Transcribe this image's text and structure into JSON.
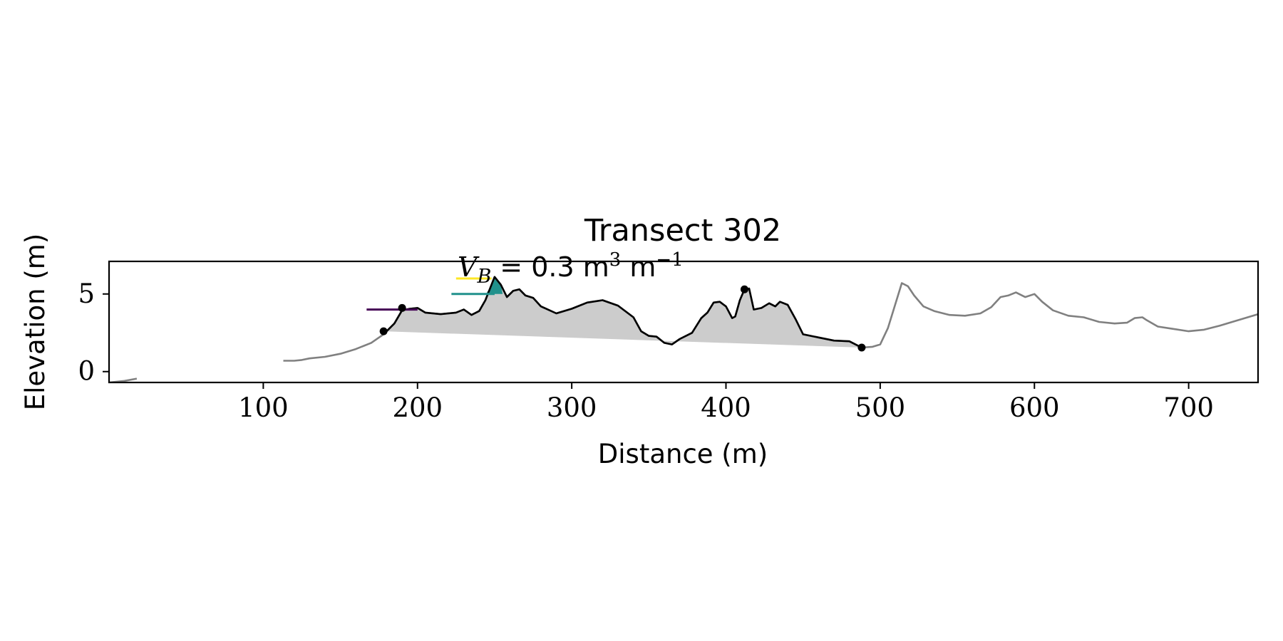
{
  "chart_data": {
    "type": "line",
    "title": "Transect 302",
    "xlabel": "Distance (m)",
    "ylabel": "Elevation (m)",
    "xlim": [
      0,
      745
    ],
    "ylim": [
      -0.7,
      7.1
    ],
    "xticks": [
      100,
      200,
      300,
      400,
      500,
      600,
      700
    ],
    "yticks": [
      0,
      5
    ],
    "grid": false,
    "legend": "none",
    "annotation": {
      "text": "V_B = 0.3 m^3 m^-1",
      "parts": {
        "v": "V",
        "sub": "B",
        "eq": "= 0.3 m",
        "exp1": "3",
        "mid": " m",
        "exp2": "−1"
      }
    },
    "series": [
      {
        "role": "full-profile",
        "color": "#808080",
        "segments": [
          [
            [
              0,
              -0.7
            ],
            [
              10,
              -0.6
            ],
            [
              18,
              -0.45
            ]
          ],
          [
            [
              113,
              0.7
            ],
            [
              120,
              0.7
            ],
            [
              125,
              0.75
            ],
            [
              130,
              0.85
            ],
            [
              140,
              0.95
            ],
            [
              150,
              1.15
            ],
            [
              160,
              1.45
            ],
            [
              170,
              1.85
            ],
            [
              178,
              2.4
            ],
            [
              185,
              3.1
            ],
            [
              190,
              3.95
            ],
            [
              195,
              4.05
            ],
            [
              200,
              4.1
            ],
            [
              205,
              3.8
            ],
            [
              215,
              3.7
            ],
            [
              225,
              3.8
            ],
            [
              230,
              4.0
            ],
            [
              235,
              3.65
            ],
            [
              240,
              3.9
            ],
            [
              244,
              4.6
            ],
            [
              248,
              5.6
            ],
            [
              250,
              6.1
            ],
            [
              254,
              5.6
            ],
            [
              258,
              4.8
            ],
            [
              262,
              5.2
            ],
            [
              266,
              5.3
            ],
            [
              270,
              4.9
            ],
            [
              275,
              4.75
            ],
            [
              280,
              4.2
            ],
            [
              290,
              3.75
            ],
            [
              300,
              4.05
            ],
            [
              310,
              4.45
            ],
            [
              320,
              4.6
            ],
            [
              330,
              4.25
            ],
            [
              340,
              3.5
            ],
            [
              345,
              2.6
            ],
            [
              350,
              2.3
            ],
            [
              355,
              2.25
            ],
            [
              360,
              1.85
            ],
            [
              365,
              1.75
            ],
            [
              370,
              2.1
            ],
            [
              378,
              2.5
            ],
            [
              384,
              3.45
            ],
            [
              388,
              3.8
            ],
            [
              392,
              4.45
            ],
            [
              396,
              4.5
            ],
            [
              400,
              4.2
            ],
            [
              404,
              3.45
            ],
            [
              406,
              3.55
            ],
            [
              409,
              4.6
            ],
            [
              412,
              5.3
            ],
            [
              415,
              5.35
            ],
            [
              418,
              4.0
            ],
            [
              423,
              4.1
            ],
            [
              428,
              4.4
            ],
            [
              432,
              4.2
            ],
            [
              435,
              4.5
            ],
            [
              440,
              4.3
            ],
            [
              445,
              3.4
            ],
            [
              450,
              2.4
            ],
            [
              460,
              2.2
            ],
            [
              470,
              2.0
            ],
            [
              480,
              1.95
            ],
            [
              488,
              1.55
            ],
            [
              495,
              1.6
            ],
            [
              500,
              1.75
            ],
            [
              505,
              2.8
            ],
            [
              510,
              4.4
            ],
            [
              514,
              5.7
            ],
            [
              518,
              5.5
            ],
            [
              522,
              4.9
            ],
            [
              528,
              4.2
            ],
            [
              535,
              3.9
            ],
            [
              545,
              3.65
            ],
            [
              555,
              3.6
            ],
            [
              565,
              3.75
            ],
            [
              572,
              4.15
            ],
            [
              578,
              4.8
            ],
            [
              583,
              4.9
            ],
            [
              588,
              5.1
            ],
            [
              594,
              4.8
            ],
            [
              600,
              5.0
            ],
            [
              605,
              4.5
            ],
            [
              612,
              3.95
            ],
            [
              622,
              3.6
            ],
            [
              632,
              3.5
            ],
            [
              642,
              3.2
            ],
            [
              652,
              3.1
            ],
            [
              660,
              3.15
            ],
            [
              665,
              3.45
            ],
            [
              670,
              3.5
            ],
            [
              673,
              3.3
            ],
            [
              680,
              2.9
            ],
            [
              690,
              2.75
            ],
            [
              700,
              2.6
            ],
            [
              710,
              2.7
            ],
            [
              720,
              2.95
            ],
            [
              730,
              3.25
            ],
            [
              745,
              3.7
            ]
          ]
        ]
      },
      {
        "role": "dune-profile",
        "color": "#000000",
        "points": [
          [
            178,
            2.4
          ],
          [
            185,
            3.1
          ],
          [
            190,
            3.95
          ],
          [
            195,
            4.05
          ],
          [
            200,
            4.1
          ],
          [
            205,
            3.8
          ],
          [
            215,
            3.7
          ],
          [
            225,
            3.8
          ],
          [
            230,
            4.0
          ],
          [
            235,
            3.65
          ],
          [
            240,
            3.9
          ],
          [
            244,
            4.6
          ],
          [
            248,
            5.6
          ],
          [
            250,
            6.1
          ],
          [
            254,
            5.6
          ],
          [
            258,
            4.8
          ],
          [
            262,
            5.2
          ],
          [
            266,
            5.3
          ],
          [
            270,
            4.9
          ],
          [
            275,
            4.75
          ],
          [
            280,
            4.2
          ],
          [
            290,
            3.75
          ],
          [
            300,
            4.05
          ],
          [
            310,
            4.45
          ],
          [
            320,
            4.6
          ],
          [
            330,
            4.25
          ],
          [
            340,
            3.5
          ],
          [
            345,
            2.6
          ],
          [
            350,
            2.3
          ],
          [
            355,
            2.25
          ],
          [
            360,
            1.85
          ],
          [
            365,
            1.75
          ],
          [
            370,
            2.1
          ],
          [
            378,
            2.5
          ],
          [
            384,
            3.45
          ],
          [
            388,
            3.8
          ],
          [
            392,
            4.45
          ],
          [
            396,
            4.5
          ],
          [
            400,
            4.2
          ],
          [
            404,
            3.45
          ],
          [
            406,
            3.55
          ],
          [
            409,
            4.6
          ],
          [
            412,
            5.3
          ],
          [
            415,
            5.35
          ],
          [
            418,
            4.0
          ],
          [
            423,
            4.1
          ],
          [
            428,
            4.4
          ],
          [
            432,
            4.2
          ],
          [
            435,
            4.5
          ],
          [
            440,
            4.3
          ],
          [
            445,
            3.4
          ],
          [
            450,
            2.4
          ],
          [
            460,
            2.2
          ],
          [
            470,
            2.0
          ],
          [
            480,
            1.95
          ],
          [
            488,
            1.55
          ]
        ]
      }
    ],
    "dune_area": {
      "color": "#cccccc",
      "base_line": [
        [
          178,
          2.6
        ],
        [
          488,
          1.55
        ]
      ]
    },
    "markers": [
      {
        "x": 178,
        "y": 2.6,
        "color": "#000000"
      },
      {
        "x": 190,
        "y": 4.1,
        "color": "#000000"
      },
      {
        "x": 412,
        "y": 5.3,
        "color": "#000000"
      },
      {
        "x": 488,
        "y": 1.55,
        "color": "#000000"
      }
    ],
    "water_levels": [
      {
        "y": 4.0,
        "x0": 167,
        "x1": 200,
        "color": "#440154"
      },
      {
        "y": 5.0,
        "x0": 222,
        "x1": 250,
        "color": "#21918c"
      },
      {
        "y": 6.0,
        "x0": 225,
        "x1": 248,
        "color": "#fde725"
      }
    ],
    "overtopped_fill": {
      "color": "#21918c",
      "level": 5.0
    }
  }
}
